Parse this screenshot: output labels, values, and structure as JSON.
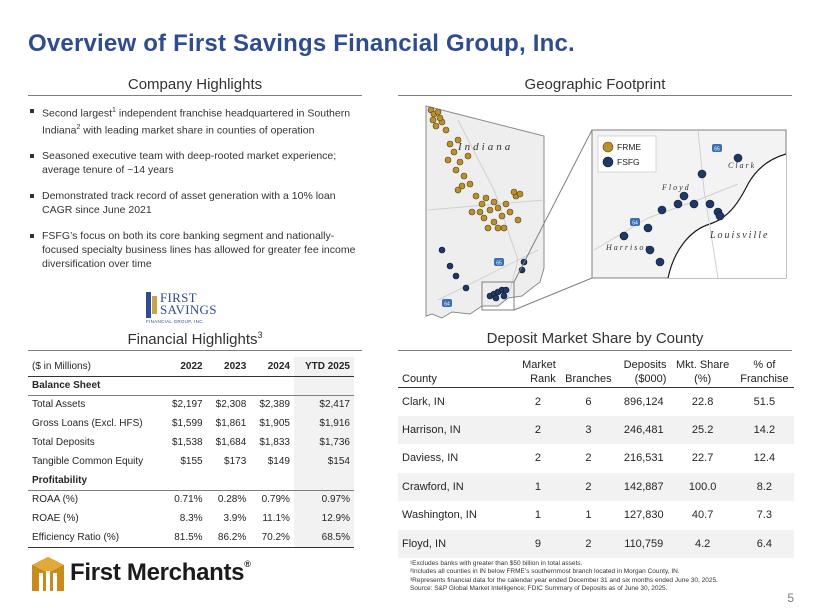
{
  "page": {
    "title": "Overview of First Savings Financial Group, Inc.",
    "page_number": "5"
  },
  "company_highlights": {
    "heading": "Company Highlights",
    "bullets": [
      {
        "pre": "Second largest",
        "sup": "1",
        "mid": " independent franchise headquartered in Southern Indiana",
        "sup2": "2",
        "post": " with leading market share in counties of operation"
      },
      {
        "pre": "Seasoned executive team with deep-rooted market experience; average tenure of ~14 years",
        "sup": "",
        "mid": "",
        "sup2": "",
        "post": ""
      },
      {
        "pre": "Demonstrated track record of asset generation with a 10% loan CAGR since June 2021",
        "sup": "",
        "mid": "",
        "sup2": "",
        "post": ""
      },
      {
        "pre": "FSFG’s focus on both its core banking segment and nationally-focused specialty business lines has allowed for greater fee income diversification over time",
        "sup": "",
        "mid": "",
        "sup2": "",
        "post": ""
      }
    ]
  },
  "fsfg_logo": {
    "line1": "FIRST",
    "line2": "SAVINGS",
    "sub": "FINANCIAL GROUP, INC."
  },
  "financial_highlights": {
    "heading": "Financial Highlights",
    "heading_sup": "3",
    "columns": [
      "($ in Millions)",
      "2022",
      "2023",
      "2024",
      "YTD 2025"
    ],
    "section1": "Balance Sheet",
    "rows1": [
      [
        "Total Assets",
        "$2,197",
        "$2,308",
        "$2,389",
        "$2,417"
      ],
      [
        "Gross Loans (Excl. HFS)",
        "$1,599",
        "$1,861",
        "$1,905",
        "$1,916"
      ],
      [
        "Total Deposits",
        "$1,538",
        "$1,684",
        "$1,833",
        "$1,736"
      ],
      [
        "Tangible Common Equity",
        "$155",
        "$173",
        "$149",
        "$154"
      ]
    ],
    "section2": "Profitability",
    "rows2": [
      [
        "ROAA (%)",
        "0.71%",
        "0.28%",
        "0.79%",
        "0.97%"
      ],
      [
        "ROAE (%)",
        "8.3%",
        "3.9%",
        "11.1%",
        "12.9%"
      ],
      [
        "Efficiency Ratio (%)",
        "81.5%",
        "86.2%",
        "70.2%",
        "68.5%"
      ]
    ]
  },
  "geographic_footprint": {
    "heading": "Geographic Footprint",
    "state_label": "Indiana",
    "legend": [
      "FRME",
      "FSFG"
    ],
    "legend_colors": [
      "#b8912e",
      "#1f3864"
    ],
    "inset_labels": [
      "Clark",
      "Floyd",
      "Harrison",
      "Louisville"
    ],
    "highway_labels": [
      "65",
      "64"
    ]
  },
  "deposit_market_share": {
    "heading": "Deposit Market Share by County",
    "header_top": [
      "",
      "Market",
      "",
      "Deposits",
      "Mkt. Share",
      "% of"
    ],
    "header_bottom": [
      "County",
      "Rank",
      "Branches",
      "($000)",
      "(%)",
      "Franchise"
    ],
    "rows": [
      [
        "Clark, IN",
        "2",
        "6",
        "896,124",
        "22.8",
        "51.5"
      ],
      [
        "Harrison, IN",
        "2",
        "3",
        "246,481",
        "25.2",
        "14.2"
      ],
      [
        "Daviess, IN",
        "2",
        "2",
        "216,531",
        "22.7",
        "12.4"
      ],
      [
        "Crawford, IN",
        "1",
        "2",
        "142,887",
        "100.0",
        "8.2"
      ],
      [
        "Washington, IN",
        "1",
        "1",
        "127,830",
        "40.7",
        "7.3"
      ],
      [
        "Floyd, IN",
        "9",
        "2",
        "110,759",
        "4.2",
        "6.4"
      ]
    ]
  },
  "footnotes": [
    "¹Excludes banks with greater than $50 billion in total assets.",
    "²Includes all counties in IN below FRME’s southernmost branch located in Morgan County, IN.",
    "³Represents financial data for the calendar year ended December 31 and six months ended June 30, 2025.",
    "Source: S&P Global Market Intelligence; FDIC Summary of Deposits as of June 30, 2025."
  ],
  "first_merchants_logo": {
    "name": "First Merchants",
    "mark": "®"
  }
}
